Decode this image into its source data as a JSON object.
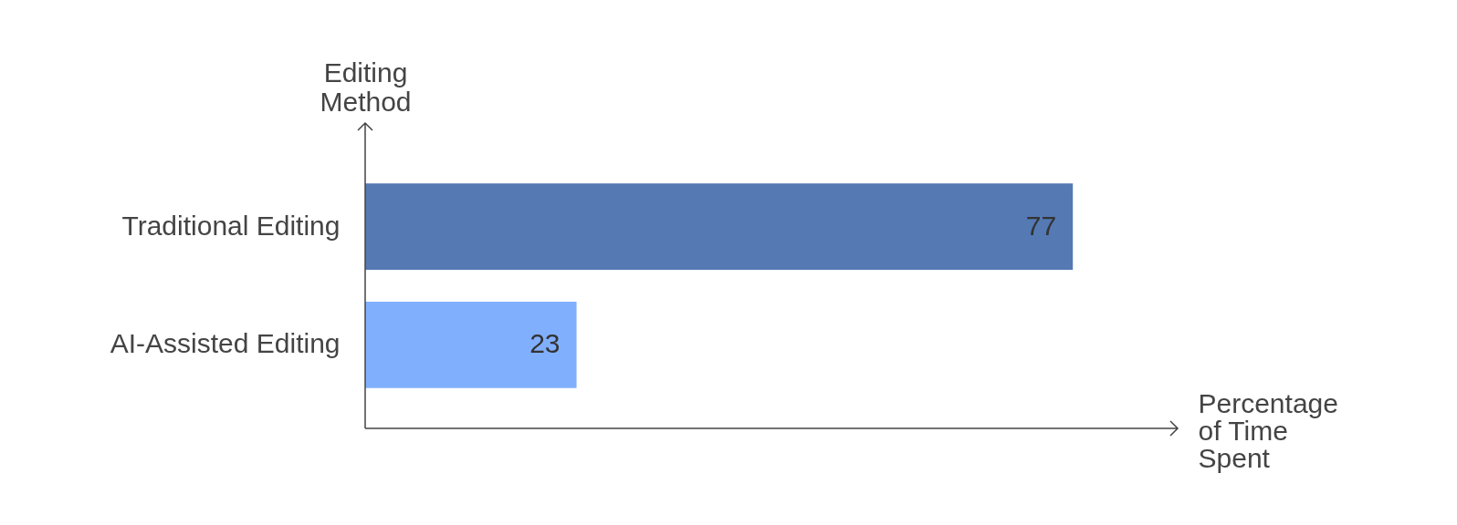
{
  "chart_data": {
    "type": "bar",
    "orientation": "horizontal",
    "xlabel": "Percentage of Time Spent",
    "ylabel": "Editing Method",
    "categories": [
      "Traditional Editing",
      "AI-Assisted Editing"
    ],
    "values": [
      77,
      23
    ],
    "colors": [
      "#5479b3",
      "#80b0fd"
    ],
    "data_labels": true,
    "grid": false,
    "legend": false,
    "tick_labels": "y"
  }
}
